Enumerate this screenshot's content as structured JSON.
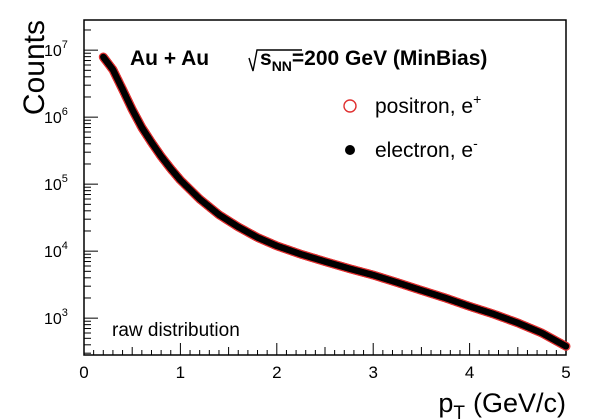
{
  "chart_data": {
    "type": "scatter",
    "xlabel_main": "p",
    "xlabel_sub": "T",
    "xlabel_units": "(GeV/c)",
    "ylabel": "Counts",
    "xlim": [
      0,
      5
    ],
    "ylim_log10": [
      2.45,
      7.45
    ],
    "y_scale": "log",
    "x_ticks": [
      "0",
      "1",
      "2",
      "3",
      "4",
      "5"
    ],
    "y_ticks": [
      {
        "base": "10",
        "exp": "3",
        "log10": 3
      },
      {
        "base": "10",
        "exp": "4",
        "log10": 4
      },
      {
        "base": "10",
        "exp": "5",
        "log10": 5
      },
      {
        "base": "10",
        "exp": "6",
        "log10": 6
      },
      {
        "base": "10",
        "exp": "7",
        "log10": 7
      }
    ],
    "annotation_system": "Au + Au",
    "annotation_sqrt": "s",
    "annotation_sqrt_sub": "NN",
    "annotation_energy": "=200 GeV (MinBias)",
    "annotation_corner": "raw distribution",
    "legend_position": "top-right",
    "series": [
      {
        "name_text": "positron, e",
        "name_sup": "+",
        "marker": "open-circle",
        "color": "#e03030",
        "points": [
          [
            0.2,
            7900000.0
          ],
          [
            0.3,
            5100000.0
          ],
          [
            0.4,
            2600000.0
          ],
          [
            0.5,
            1300000.0
          ],
          [
            0.6,
            700000.0
          ],
          [
            0.7,
            420000.0
          ],
          [
            0.8,
            260000.0
          ],
          [
            0.9,
            170000.0
          ],
          [
            1.0,
            115000.0
          ],
          [
            1.2,
            60000.0
          ],
          [
            1.4,
            35000.0
          ],
          [
            1.6,
            23000.0
          ],
          [
            1.8,
            16000.0
          ],
          [
            2.0,
            12000.0
          ],
          [
            2.25,
            9000.0
          ],
          [
            2.5,
            7000.0
          ],
          [
            2.75,
            5500.0
          ],
          [
            3.0,
            4400.0
          ],
          [
            3.25,
            3400.0
          ],
          [
            3.5,
            2600.0
          ],
          [
            3.75,
            2000.0
          ],
          [
            4.0,
            1500.0
          ],
          [
            4.25,
            1150.0
          ],
          [
            4.5,
            850.0
          ],
          [
            4.75,
            600.0
          ],
          [
            5.0,
            380.0
          ]
        ]
      },
      {
        "name_text": "electron, e",
        "name_sup": "-",
        "marker": "filled-circle",
        "color": "#000000",
        "points": [
          [
            0.2,
            7900000.0
          ],
          [
            0.3,
            5100000.0
          ],
          [
            0.4,
            2600000.0
          ],
          [
            0.5,
            1300000.0
          ],
          [
            0.6,
            700000.0
          ],
          [
            0.7,
            420000.0
          ],
          [
            0.8,
            260000.0
          ],
          [
            0.9,
            170000.0
          ],
          [
            1.0,
            115000.0
          ],
          [
            1.2,
            60000.0
          ],
          [
            1.4,
            35000.0
          ],
          [
            1.6,
            23000.0
          ],
          [
            1.8,
            16000.0
          ],
          [
            2.0,
            12000.0
          ],
          [
            2.25,
            9000.0
          ],
          [
            2.5,
            7000.0
          ],
          [
            2.75,
            5500.0
          ],
          [
            3.0,
            4400.0
          ],
          [
            3.25,
            3400.0
          ],
          [
            3.5,
            2600.0
          ],
          [
            3.75,
            2000.0
          ],
          [
            4.0,
            1500.0
          ],
          [
            4.25,
            1150.0
          ],
          [
            4.5,
            850.0
          ],
          [
            4.75,
            600.0
          ],
          [
            5.0,
            380.0
          ]
        ]
      }
    ]
  }
}
